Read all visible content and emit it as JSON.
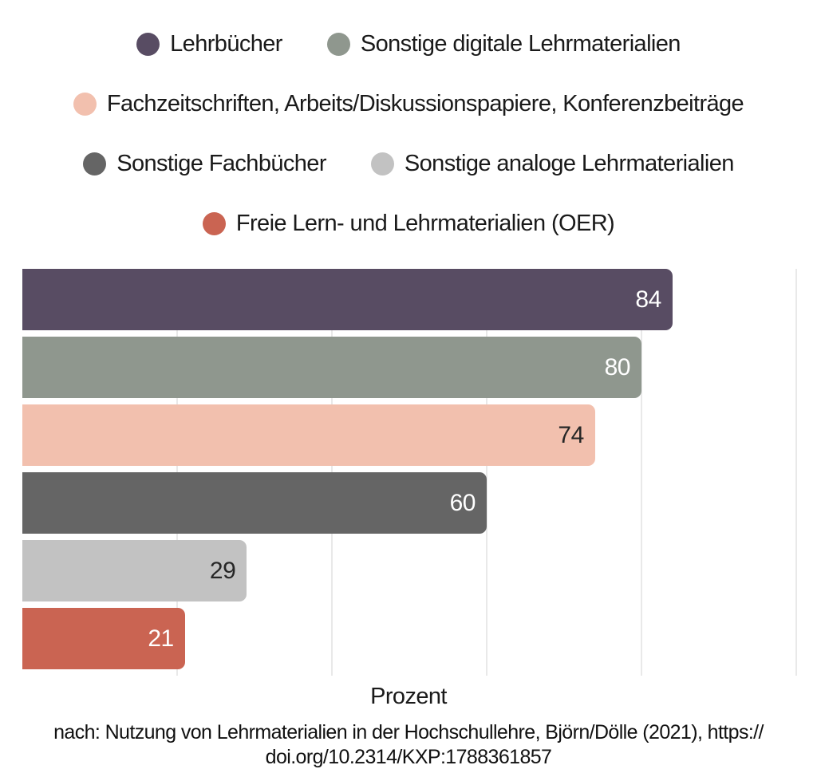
{
  "chart_data": {
    "type": "bar",
    "orientation": "horizontal",
    "categories": [
      "Lehrbücher",
      "Sonstige digitale Lehrmaterialien",
      "Fachzeitschriften, Arbeits/Diskussionspapiere, Konferenzbeiträge",
      "Sonstige Fachbücher",
      "Sonstige analoge Lehrmaterialien",
      "Freie Lern- und Lehrmaterialien (OER)"
    ],
    "values": [
      84,
      80,
      74,
      60,
      29,
      21
    ],
    "bar_colors": [
      "#584c63",
      "#8f978e",
      "#f2c0ae",
      "#656565",
      "#c2c2c2",
      "#ca6452"
    ],
    "value_label_colors": [
      "#ffffff",
      "#ffffff",
      "#262626",
      "#ffffff",
      "#262626",
      "#ffffff"
    ],
    "xlabel": "Prozent",
    "xlim": [
      0,
      100
    ],
    "gridlines": [
      20,
      40,
      60,
      80,
      100
    ],
    "gridline_color": "#e9e9e9",
    "grid": "vertical",
    "legend_position": "top",
    "legend_rows": [
      [
        0,
        1
      ],
      [
        2
      ],
      [
        3,
        4
      ],
      [
        5
      ]
    ]
  },
  "caption": {
    "line1": "nach: Nutzung von Lehrmaterialien in der Hochschullehre, Björn/Dölle (2021), https://",
    "line2": "doi.org/10.2314/KXP:1788361857"
  }
}
